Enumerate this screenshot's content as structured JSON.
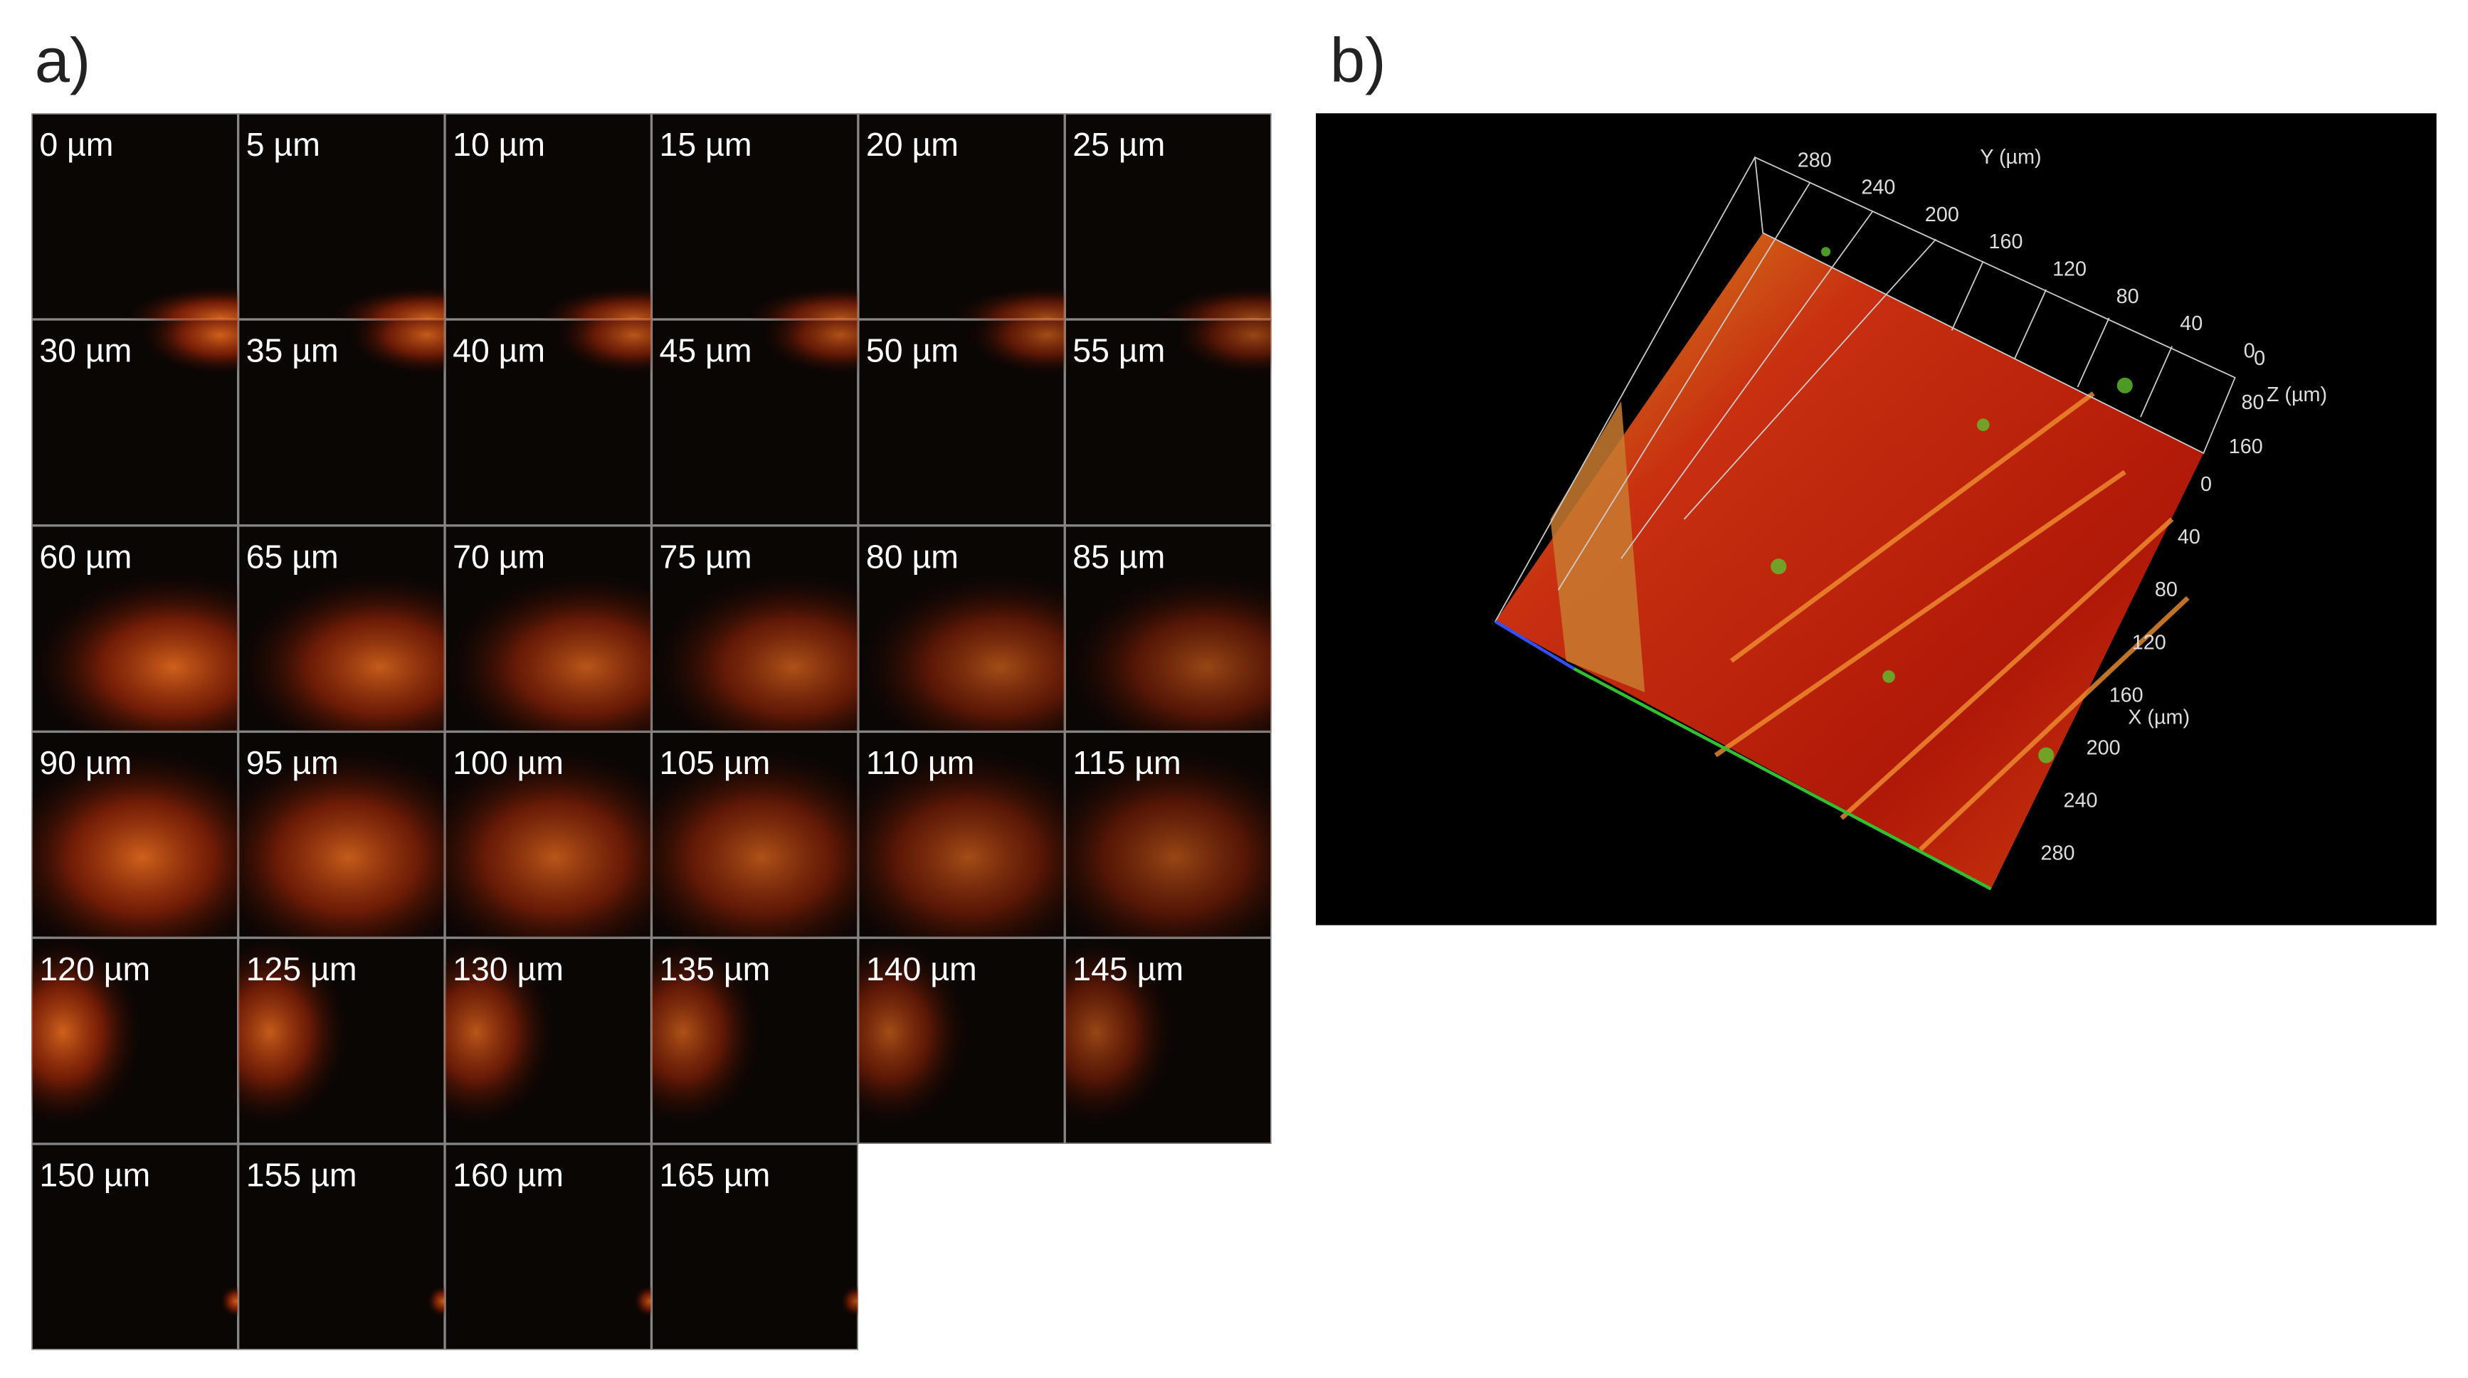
{
  "panel_a": {
    "label": "a)",
    "tiles": [
      "0 µm",
      "5 µm",
      "10 µm",
      "15 µm",
      "20 µm",
      "25 µm",
      "30 µm",
      "35 µm",
      "40 µm",
      "45 µm",
      "50 µm",
      "55 µm",
      "60 µm",
      "65 µm",
      "70 µm",
      "75 µm",
      "80 µm",
      "85 µm",
      "90 µm",
      "95 µm",
      "100 µm",
      "105 µm",
      "110 µm",
      "115 µm",
      "120 µm",
      "125 µm",
      "130 µm",
      "135 µm",
      "140 µm",
      "145 µm",
      "150 µm",
      "155 µm",
      "160 µm",
      "165 µm"
    ]
  },
  "panel_b": {
    "label": "b)",
    "y_axis": {
      "label": "Y (µm)",
      "ticks": [
        "280",
        "240",
        "200",
        "160",
        "120",
        "80",
        "40",
        "0"
      ]
    },
    "z_axis": {
      "label": "Z (µm)",
      "ticks": [
        "0",
        "80",
        "160"
      ]
    },
    "x_axis": {
      "label": "X (µm)",
      "ticks": [
        "0",
        "40",
        "80",
        "120",
        "160",
        "200",
        "240",
        "280"
      ]
    }
  }
}
